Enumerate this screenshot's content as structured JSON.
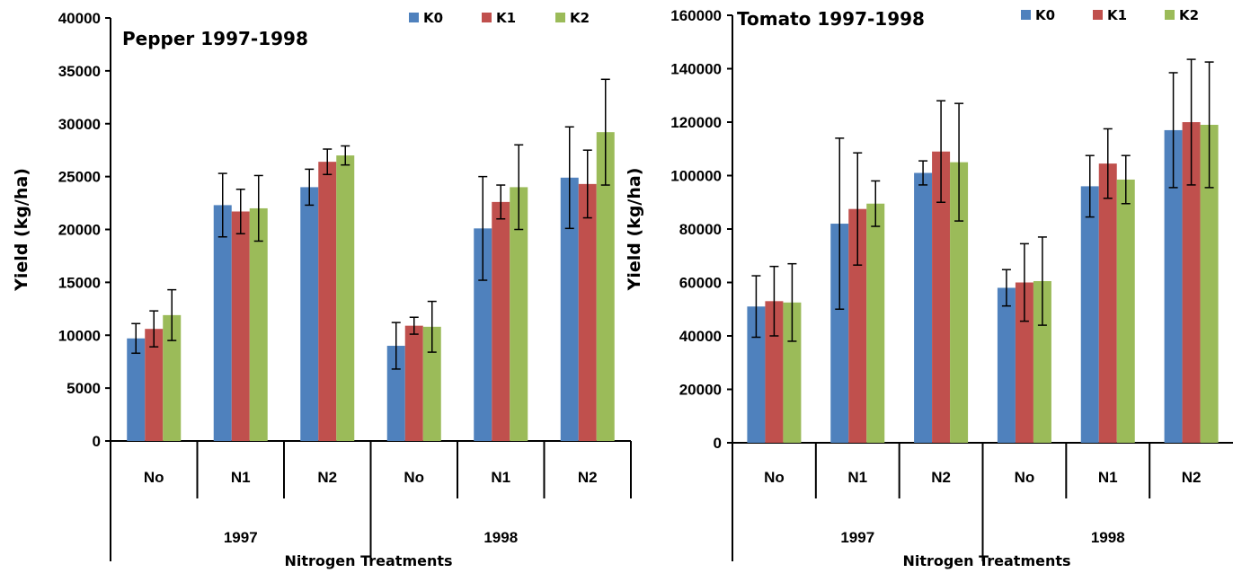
{
  "colors": {
    "K0": "#4f81bd",
    "K1": "#c0504d",
    "K2": "#9bbb59"
  },
  "chart_data": [
    {
      "type": "bar",
      "title": "Pepper 1997-1998",
      "ylabel": "Yield (kg/ha)",
      "xlabel": "Nitrogen Treatments",
      "ylim": [
        0,
        40000
      ],
      "yticks": [
        0,
        5000,
        10000,
        15000,
        20000,
        25000,
        30000,
        35000,
        40000
      ],
      "categories": [
        "No",
        "N1",
        "N2",
        "No",
        "N1",
        "N2"
      ],
      "groups": [
        "1997",
        "1998"
      ],
      "legend_position": "top-right",
      "grid": false,
      "series": [
        {
          "name": "K0",
          "values": [
            9700,
            22300,
            24000,
            9000,
            20100,
            24900
          ],
          "errors": [
            1400,
            3000,
            1700,
            2200,
            4900,
            4800
          ]
        },
        {
          "name": "K1",
          "values": [
            10600,
            21700,
            26400,
            10900,
            22600,
            24300
          ],
          "errors": [
            1700,
            2100,
            1200,
            800,
            1600,
            3200
          ]
        },
        {
          "name": "K2",
          "values": [
            11900,
            22000,
            27000,
            10800,
            24000,
            29200
          ],
          "errors": [
            2400,
            3100,
            900,
            2400,
            4000,
            5000
          ]
        }
      ]
    },
    {
      "type": "bar",
      "title": "Tomato 1997-1998",
      "ylabel": "Yield (kg/ha)",
      "xlabel": "Nitrogen Treatments",
      "ylim": [
        0,
        160000
      ],
      "yticks": [
        0,
        20000,
        40000,
        60000,
        80000,
        100000,
        120000,
        140000,
        160000
      ],
      "categories": [
        "No",
        "N1",
        "N2",
        "No",
        "N1",
        "N2"
      ],
      "groups": [
        "1997",
        "1998"
      ],
      "legend_position": "top-right",
      "grid": false,
      "series": [
        {
          "name": "K0",
          "values": [
            51000,
            82000,
            101000,
            58000,
            96000,
            117000
          ],
          "errors": [
            11500,
            32000,
            4500,
            6800,
            11500,
            21500
          ]
        },
        {
          "name": "K1",
          "values": [
            53000,
            87500,
            109000,
            60000,
            104500,
            120000
          ],
          "errors": [
            13000,
            21000,
            19000,
            14500,
            13000,
            23500
          ]
        },
        {
          "name": "K2",
          "values": [
            52500,
            89500,
            105000,
            60500,
            98500,
            119000
          ],
          "errors": [
            14500,
            8500,
            22000,
            16500,
            9000,
            23500
          ]
        }
      ]
    }
  ]
}
